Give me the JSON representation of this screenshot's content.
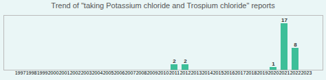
{
  "chart_data": {
    "type": "bar",
    "title": "Trend of \"taking Potassium chloride and Trospium chloride\" reports",
    "categories": [
      "1997",
      "1998",
      "1999",
      "2000",
      "2001",
      "2002",
      "2003",
      "2004",
      "2005",
      "2006",
      "2007",
      "2008",
      "2009",
      "2010",
      "2011",
      "2012",
      "2013",
      "2014",
      "2015",
      "2016",
      "2017",
      "2018",
      "2019",
      "2020",
      "2021",
      "2022",
      "2023"
    ],
    "values": [
      0,
      0,
      0,
      0,
      0,
      0,
      0,
      0,
      0,
      0,
      0,
      0,
      0,
      0,
      2,
      2,
      0,
      0,
      0,
      0,
      0,
      0,
      0,
      1,
      17,
      8,
      0
    ],
    "value_labels": [
      null,
      null,
      null,
      null,
      null,
      null,
      null,
      null,
      null,
      null,
      null,
      null,
      null,
      null,
      "2",
      "2",
      null,
      null,
      null,
      null,
      null,
      null,
      null,
      "1",
      "17",
      "8",
      null
    ],
    "data_labels": true,
    "color": "#3dbf99",
    "ylim": [
      0,
      20
    ],
    "tick_labels": "x",
    "grid": false
  }
}
